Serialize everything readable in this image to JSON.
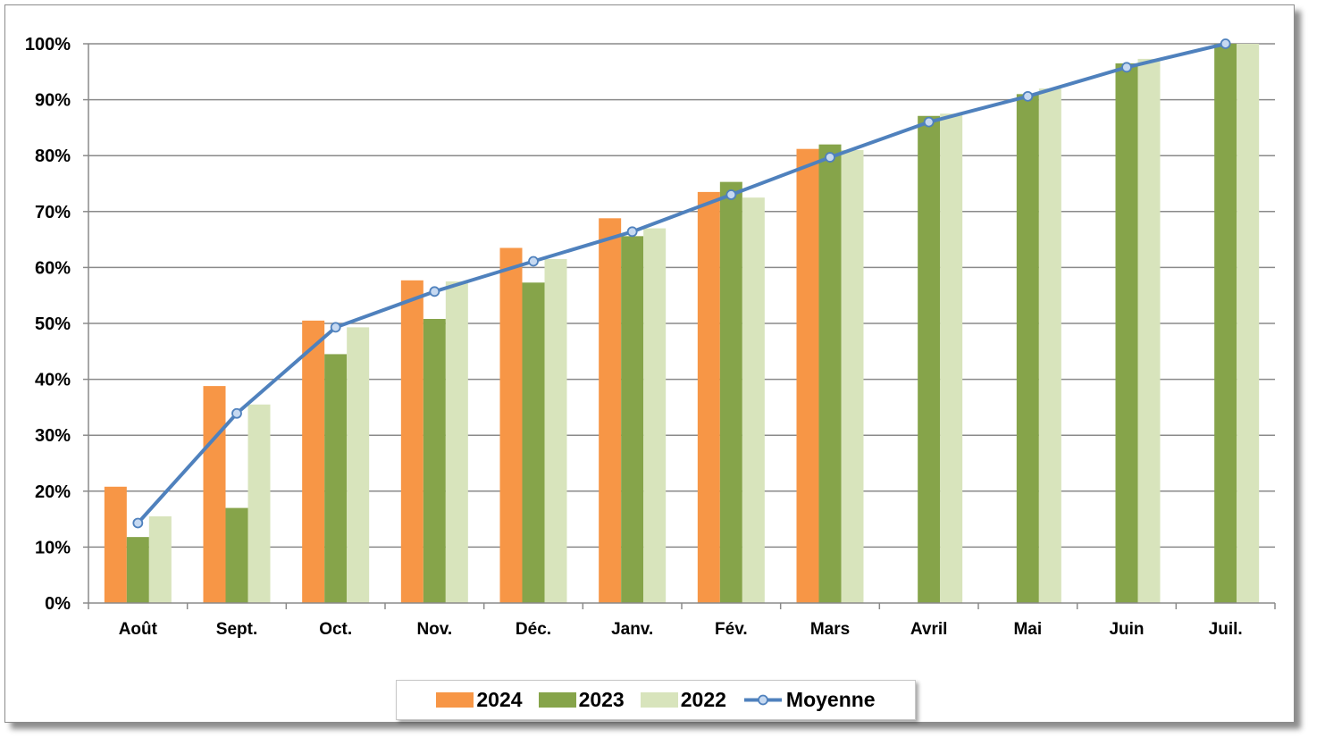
{
  "chart_data": {
    "type": "bar",
    "categories": [
      "Août",
      "Sept.",
      "Oct.",
      "Nov.",
      "Déc.",
      "Janv.",
      "Fév.",
      "Mars",
      "Avril",
      "Mai",
      "Juin",
      "Juil."
    ],
    "series": [
      {
        "name": "2024",
        "type": "bar",
        "color": "#F79646",
        "values": [
          20.8,
          38.8,
          50.5,
          57.7,
          63.5,
          68.8,
          73.5,
          81.2,
          null,
          null,
          null,
          null
        ]
      },
      {
        "name": "2023",
        "type": "bar",
        "color": "#86A44A",
        "values": [
          11.8,
          17.0,
          44.5,
          50.8,
          57.3,
          65.6,
          75.3,
          82.0,
          87.1,
          91.0,
          96.5,
          100
        ]
      },
      {
        "name": "2022",
        "type": "bar",
        "color": "#D8E4BC",
        "values": [
          15.5,
          35.5,
          49.3,
          57.5,
          61.5,
          67.0,
          72.5,
          81.0,
          87.5,
          92.0,
          97.3,
          100
        ]
      },
      {
        "name": "Moyenne",
        "type": "line",
        "color": "#4F81BD",
        "values": [
          14.3,
          33.9,
          49.3,
          55.7,
          61.1,
          66.4,
          73.0,
          79.7,
          86.0,
          90.6,
          95.8,
          100
        ]
      }
    ],
    "ylim": [
      0,
      100
    ],
    "yticks": [
      "0%",
      "10%",
      "20%",
      "30%",
      "40%",
      "50%",
      "60%",
      "70%",
      "80%",
      "90%",
      "100%"
    ],
    "title": "",
    "xlabel": "",
    "ylabel": "",
    "grid": true,
    "legend_position": "bottom"
  }
}
